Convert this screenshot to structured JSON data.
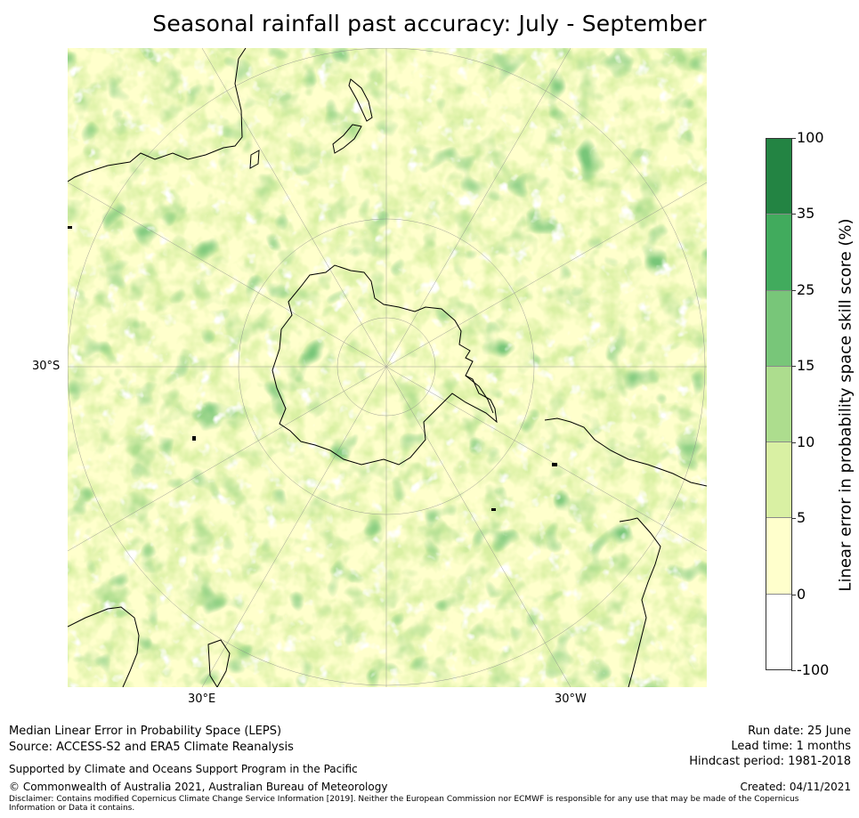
{
  "title": "Seasonal rainfall past accuracy: July - September",
  "map": {
    "projection": "south-polar-stereographic",
    "lat_label": "30°S",
    "lon_labels": [
      "30°E",
      "30°W"
    ],
    "landmasses": [
      "Antarctica",
      "Australia",
      "New Zealand",
      "South America",
      "Africa (southern tip)",
      "Madagascar"
    ],
    "dominant_range": "0 to 15"
  },
  "colorbar": {
    "label": "Linear error in probability space skill score (%)",
    "ticks": [
      "100",
      "35",
      "25",
      "15",
      "10",
      "5",
      "0",
      "-100"
    ],
    "bins": [
      {
        "range": "35 to 100",
        "color": "#238443"
      },
      {
        "range": "25 to 35",
        "color": "#41ab5d"
      },
      {
        "range": "15 to 25",
        "color": "#78c679"
      },
      {
        "range": "10 to 15",
        "color": "#addd8e"
      },
      {
        "range": "5 to 10",
        "color": "#d9f0a3"
      },
      {
        "range": "0 to 5",
        "color": "#ffffcc"
      },
      {
        "range": "-100 to 0",
        "color": "#ffffff"
      }
    ]
  },
  "footer": {
    "method": "Median Linear Error in Probability Space (LEPS)",
    "source": "Source: ACCESS-S2 and ERA5 Climate Reanalysis",
    "support": "Supported by Climate and Oceans Support Program in the Pacific",
    "copyright": "© Commonwealth of Australia 2021, Australian Bureau of Meteorology",
    "disclaimer": "Disclaimer: Contains modified Copernicus Climate Change Service Information [2019]. Neither the European Commission nor ECMWF is responsible for any use that may be made of the Copernicus Information or Data it contains.",
    "run_date": "Run date: 25 June",
    "lead_time": "Lead time: 1 months",
    "hindcast": "Hindcast period: 1981-2018",
    "created": "Created: 04/11/2021"
  }
}
